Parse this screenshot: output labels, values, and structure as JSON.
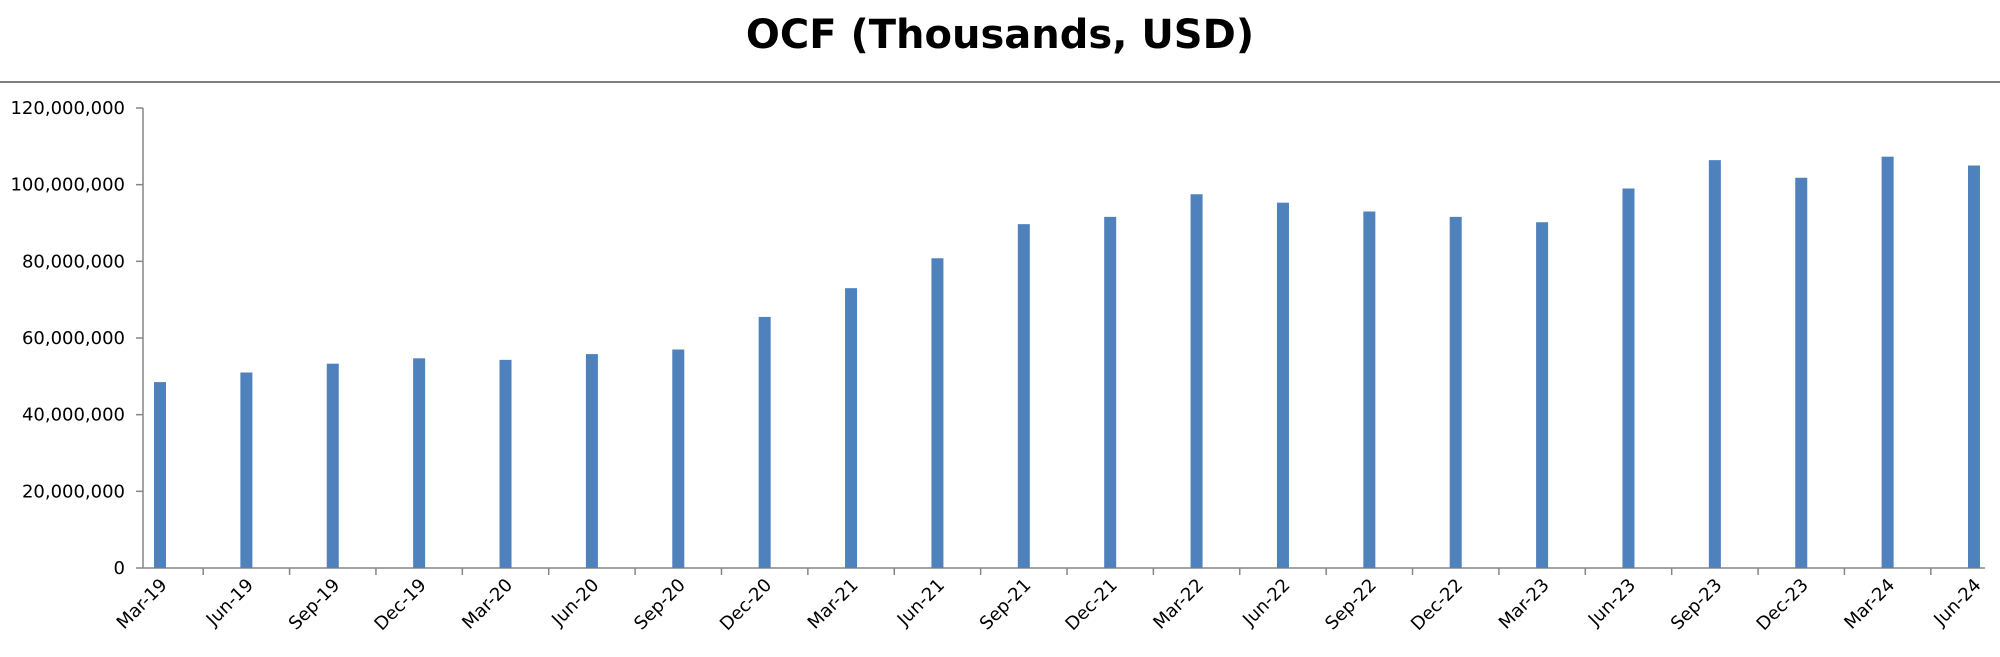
{
  "chart_data": {
    "type": "bar",
    "title": "OCF (Thousands, USD)",
    "xlabel": "",
    "ylabel": "",
    "categories": [
      "Mar-19",
      "Jun-19",
      "Sep-19",
      "Dec-19",
      "Mar-20",
      "Jun-20",
      "Sep-20",
      "Dec-20",
      "Mar-21",
      "Jun-21",
      "Sep-21",
      "Dec-21",
      "Mar-22",
      "Jun-22",
      "Sep-22",
      "Dec-22",
      "Mar-23",
      "Jun-23",
      "Sep-23",
      "Dec-23",
      "Mar-24",
      "Jun-24"
    ],
    "values": [
      48500000,
      51000000,
      53300000,
      54700000,
      54300000,
      55800000,
      57000000,
      65500000,
      73000000,
      80800000,
      89700000,
      91600000,
      97500000,
      95300000,
      93000000,
      91600000,
      90200000,
      99000000,
      106400000,
      101800000,
      107300000,
      105000000
    ],
    "ylim": [
      0,
      120000000
    ],
    "yticks": [
      "0",
      "20,000,000",
      "40,000,000",
      "60,000,000",
      "80,000,000",
      "100,000,000",
      "120,000,000"
    ],
    "grid": false,
    "legend": "none",
    "bar_color": "#4f81bd"
  }
}
